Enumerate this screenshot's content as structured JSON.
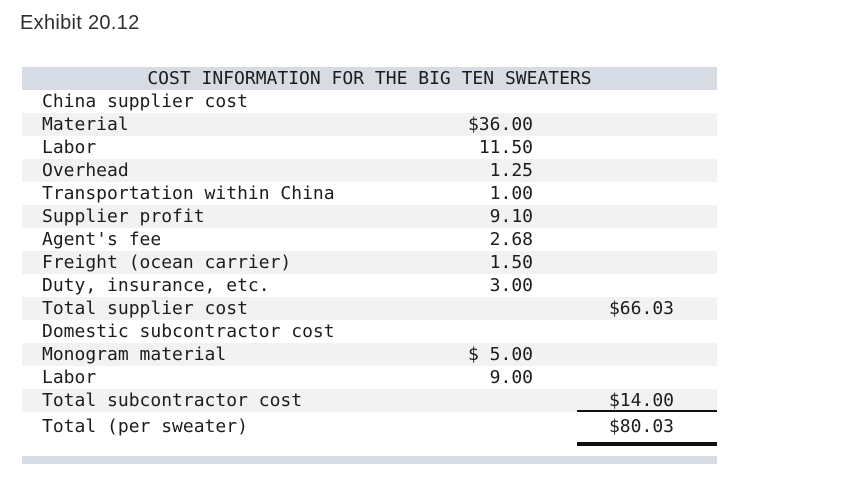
{
  "exhibit": {
    "title": "Exhibit 20.12"
  },
  "table": {
    "title": "COST INFORMATION FOR THE BIG TEN SWEATERS",
    "rows": [
      {
        "label": "China supplier cost",
        "value": "",
        "total": "",
        "shaded": false,
        "underline": false
      },
      {
        "label": "Material",
        "value": "$36.00",
        "total": "",
        "shaded": true,
        "underline": false
      },
      {
        "label": "Labor",
        "value": "11.50",
        "total": "",
        "shaded": false,
        "underline": false
      },
      {
        "label": "Overhead",
        "value": "1.25",
        "total": "",
        "shaded": true,
        "underline": false
      },
      {
        "label": "Transportation within China",
        "value": "1.00",
        "total": "",
        "shaded": false,
        "underline": false
      },
      {
        "label": "Supplier profit",
        "value": "9.10",
        "total": "",
        "shaded": true,
        "underline": false
      },
      {
        "label": "Agent's fee",
        "value": "2.68",
        "total": "",
        "shaded": false,
        "underline": false
      },
      {
        "label": "Freight (ocean carrier)",
        "value": "1.50",
        "total": "",
        "shaded": true,
        "underline": false
      },
      {
        "label": "Duty, insurance, etc.",
        "value": "3.00",
        "total": "",
        "shaded": false,
        "underline": false
      },
      {
        "label": "Total supplier cost",
        "value": "",
        "total": "$66.03",
        "shaded": true,
        "underline": false
      },
      {
        "label": "Domestic subcontractor cost",
        "value": "",
        "total": "",
        "shaded": false,
        "underline": false
      },
      {
        "label": "Monogram material",
        "value": "$ 5.00",
        "total": "",
        "shaded": true,
        "underline": false
      },
      {
        "label": "Labor",
        "value": "9.00",
        "total": "",
        "shaded": false,
        "underline": false
      },
      {
        "label": "Total subcontractor cost",
        "value": "",
        "total": "$14.00",
        "shaded": true,
        "underline": true
      }
    ],
    "grand_total": {
      "label": "Total (per sweater)",
      "total": "$80.03"
    }
  },
  "colors": {
    "header_bar": "#d7dbe4",
    "stripe": "#f2f2f2",
    "text": "#1c1c1c",
    "rule_line": "#101010"
  }
}
